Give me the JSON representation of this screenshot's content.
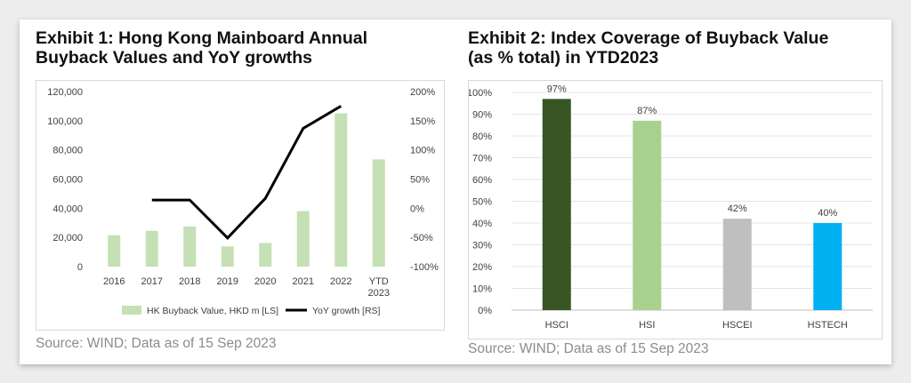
{
  "exhibit1": {
    "title_line1": "Exhibit 1: Hong Kong Mainboard Annual",
    "title_line2": "Buyback Values and YoY growths",
    "source": "Source: WIND; Data as of 15 Sep 2023"
  },
  "exhibit2": {
    "title_line1": "Exhibit 2: Index Coverage of Buyback Value",
    "title_line2": "(as % total) in YTD2023",
    "source": "Source: WIND; Data as of 15 Sep 2023"
  },
  "chart_data": [
    {
      "type": "bar+line",
      "categories": [
        [
          "2016"
        ],
        [
          "2017"
        ],
        [
          "2018"
        ],
        [
          "2019"
        ],
        [
          "2020"
        ],
        [
          "2021"
        ],
        [
          "2022"
        ],
        [
          "YTD",
          "2023"
        ]
      ],
      "series": [
        {
          "name": "HK Buyback Value, HKD m [LS]",
          "type": "bar",
          "axis": "left",
          "color": "#c5e0b4",
          "values": [
            21500,
            24500,
            27500,
            13800,
            16200,
            38000,
            105000,
            73500
          ]
        },
        {
          "name": "YoY growth [RS]",
          "type": "line",
          "axis": "right",
          "color": "#000000",
          "values": [
            null,
            14,
            14,
            -51,
            17,
            137,
            175,
            null
          ]
        }
      ],
      "y_left": {
        "min": 0,
        "max": 120000,
        "ticks": [
          "0",
          "20,000",
          "40,000",
          "60,000",
          "80,000",
          "100,000",
          "120,000"
        ]
      },
      "y_right": {
        "min": -100,
        "max": 200,
        "ticks": [
          "-100%",
          "-50%",
          "0%",
          "50%",
          "100%",
          "150%",
          "200%"
        ]
      },
      "grid": false,
      "legend": "bottom"
    },
    {
      "type": "bar",
      "categories": [
        "HSCI",
        "HSI",
        "HSCEI",
        "HSTECH"
      ],
      "values": [
        97,
        87,
        42,
        40
      ],
      "data_labels": [
        "97%",
        "87%",
        "42%",
        "40%"
      ],
      "colors": [
        "#375623",
        "#a9d18e",
        "#bfbfbf",
        "#00b0f0"
      ],
      "y": {
        "min": 0,
        "max": 100,
        "ticks": [
          "0%",
          "10%",
          "20%",
          "30%",
          "40%",
          "50%",
          "60%",
          "70%",
          "80%",
          "90%",
          "100%"
        ]
      },
      "grid": true,
      "legend": "none"
    }
  ]
}
